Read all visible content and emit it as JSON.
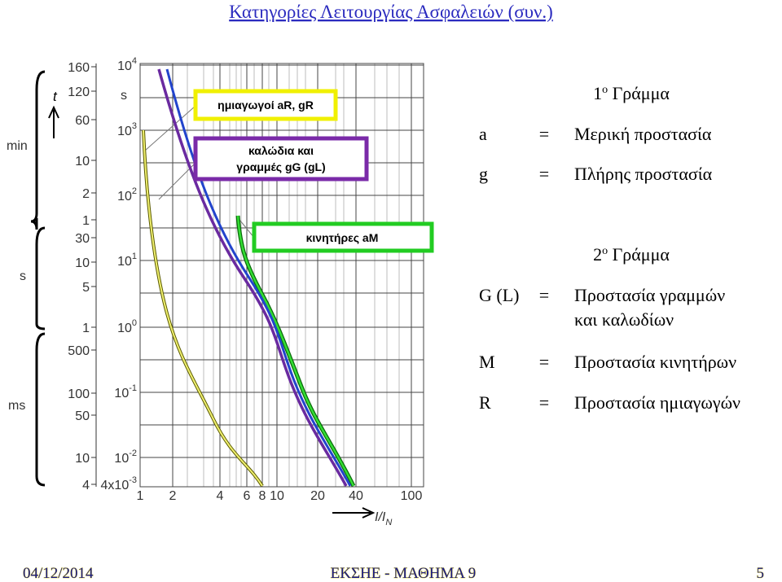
{
  "title": "Κατηγορίες Λειτουργίας Ασφαλειών (συν.)",
  "figure": {
    "y_time_labels": [
      "160",
      "120",
      "60",
      "10",
      "2",
      "1",
      "30",
      "10",
      "5",
      "1",
      "500",
      "100",
      "50",
      "10",
      "4"
    ],
    "y_powers": [
      {
        "base": "10",
        "exp": "4"
      },
      {
        "base": "10",
        "exp": "3"
      },
      {
        "base": "10",
        "exp": "2"
      },
      {
        "base": "10",
        "exp": "1"
      },
      {
        "base": "10",
        "exp": "0"
      },
      {
        "base": "10",
        "exp": "-1"
      },
      {
        "base": "10",
        "exp": "-2"
      },
      {
        "base": "4x10",
        "exp": "-3"
      }
    ],
    "y_power_unit": "s",
    "y_axis_label": "t",
    "y_units": [
      "min",
      "s",
      "ms"
    ],
    "x_labels": [
      "1",
      "2",
      "4",
      "6",
      "8",
      "10",
      "20",
      "40",
      "100"
    ],
    "x_axis_label": {
      "main": "I/I",
      "sub": "N"
    },
    "curve_labels": [
      "ημιαγωγοί aR, gR",
      "καλώδια και",
      "γραμμές gG (gL)",
      "κινητήρες aM"
    ]
  },
  "legend1": {
    "heading": {
      "main": "1",
      "sup": "ο",
      "rest": " Γράμμα"
    },
    "rows": [
      [
        "a",
        "=",
        "Μερική προστασία"
      ],
      [
        "g",
        "=",
        "Πλήρης προστασία"
      ]
    ]
  },
  "legend2": {
    "heading": {
      "main": "2",
      "sup": "ο",
      "rest": " Γράμμα"
    },
    "rows": [
      [
        "G (L)",
        "=",
        "Προστασία γραμμών"
      ],
      [
        "",
        "",
        "και καλωδίων"
      ],
      [
        "M",
        "=",
        "Προστασία κινητήρων"
      ],
      [
        "R",
        "=",
        "Προστασία ημιαγωγών"
      ]
    ]
  },
  "footer": {
    "date": "04/12/2014",
    "course": "ΕΚΣΗΕ - ΜΑΘΗΜΑ 9",
    "page": "5"
  }
}
